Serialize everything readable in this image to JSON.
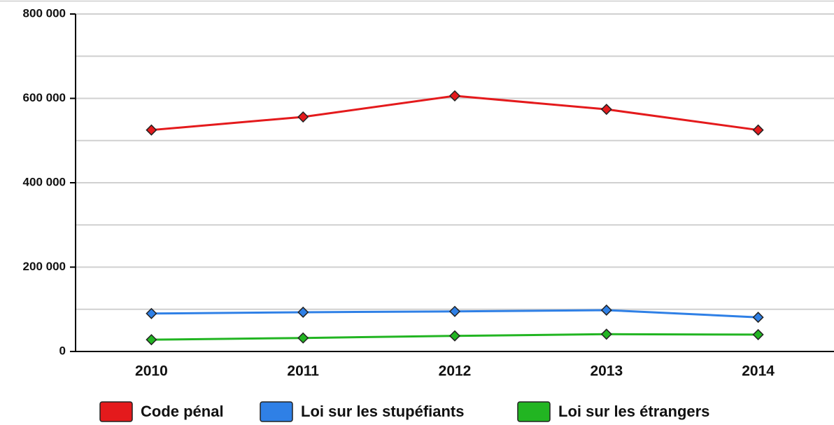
{
  "chart_data": {
    "type": "line",
    "categories": [
      "2010",
      "2011",
      "2012",
      "2013",
      "2014"
    ],
    "series": [
      {
        "name": "Code pénal",
        "color": "#e41a1c",
        "values": [
          525000,
          556000,
          606000,
          574000,
          525000
        ]
      },
      {
        "name": "Loi sur les stupéfiants",
        "color": "#2f80e6",
        "values": [
          90000,
          93000,
          95000,
          98000,
          81000
        ]
      },
      {
        "name": "Loi sur les étrangers",
        "color": "#22b522",
        "values": [
          28000,
          32000,
          37000,
          41000,
          40000
        ]
      }
    ],
    "ylim": [
      0,
      800000
    ],
    "yticks": [
      0,
      {
        "value": 200000,
        "label": "200 000"
      },
      {
        "value": 400000,
        "label": "400 000"
      },
      {
        "value": 600000,
        "label": "600 000"
      },
      {
        "value": 800000,
        "label": "800 000"
      }
    ],
    "grid": true,
    "legend": "bottom"
  }
}
